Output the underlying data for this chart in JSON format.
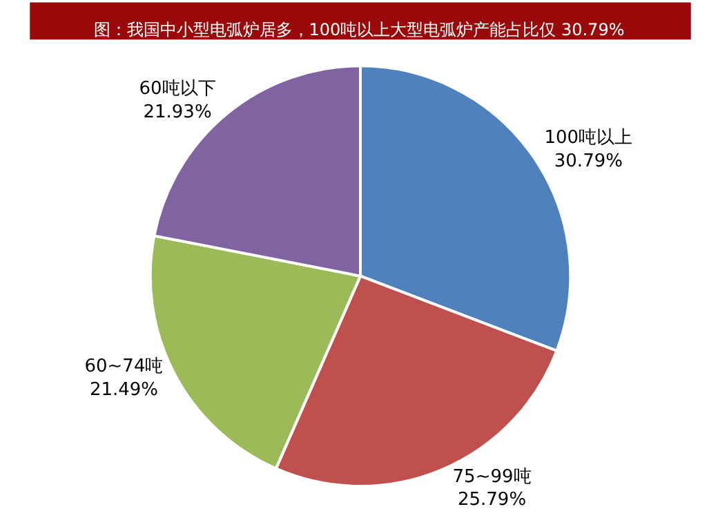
{
  "chart_data": {
    "type": "pie",
    "title": "图：我国中小型电弧炉居多，100吨以上大型电弧炉产能占比仅 30.79%",
    "categories": [
      "100吨以上",
      "75~99吨",
      "60~74吨",
      "60吨以下"
    ],
    "values": [
      30.79,
      25.79,
      21.49,
      21.93
    ],
    "colors": [
      "#4f81bd",
      "#c0504d",
      "#9bbb59",
      "#8064a2"
    ],
    "value_labels": [
      "30.79%",
      "25.79%",
      "21.49%",
      "21.93%"
    ],
    "legend": false
  }
}
